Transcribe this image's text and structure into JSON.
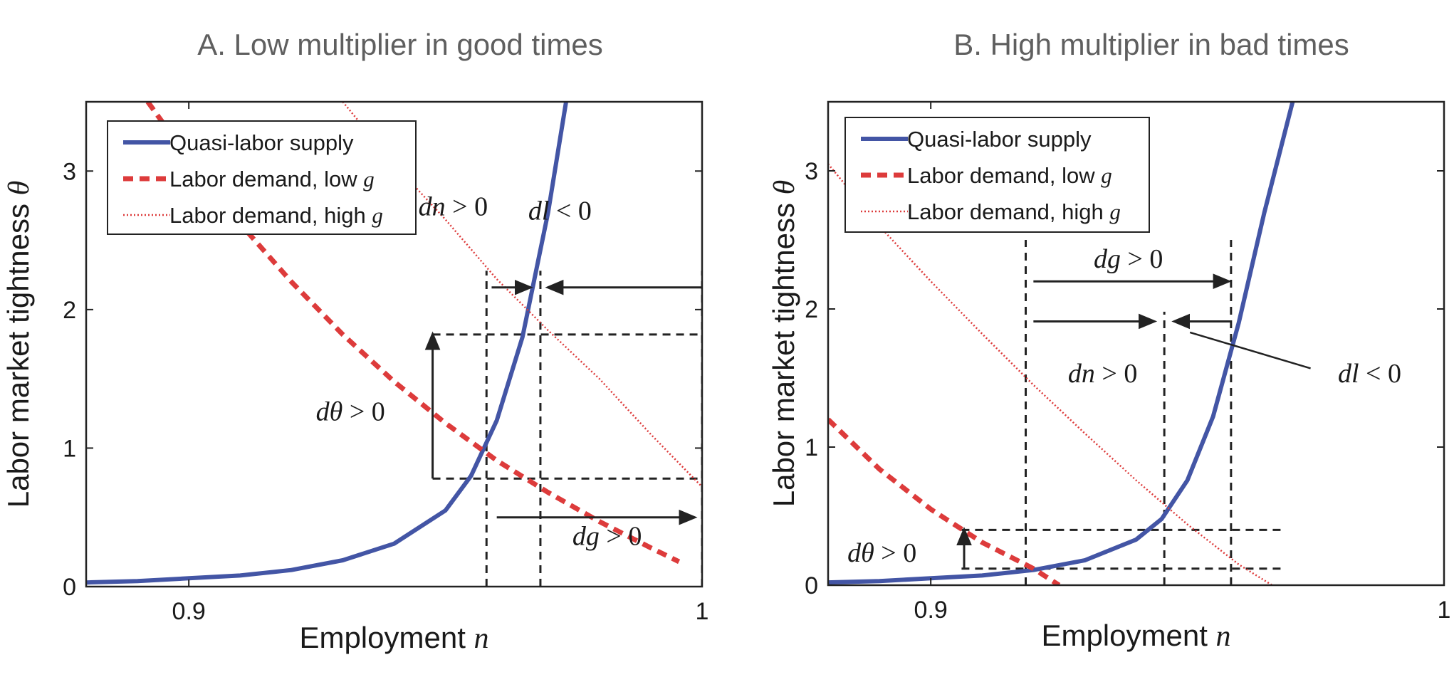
{
  "colors": {
    "supply": "#4355a5",
    "demand": "#dd3b3b",
    "guide": "#222222",
    "title": "#5f5f5f"
  },
  "chart_data": [
    {
      "type": "line",
      "title": "A. Low multiplier in good times",
      "xlabel_text": "Employment ",
      "xlabel_var": "n",
      "ylabel_text": "Labor market tightness ",
      "ylabel_var": "θ",
      "xlim": [
        0.88,
        1.0
      ],
      "ylim": [
        0,
        3.5
      ],
      "xticks": [
        {
          "value": 0.9,
          "label": "0.9"
        },
        {
          "value": 1.0,
          "label": "1"
        }
      ],
      "yticks": [
        {
          "value": 0,
          "label": "0"
        },
        {
          "value": 1,
          "label": "1"
        },
        {
          "value": 2,
          "label": "2"
        },
        {
          "value": 3,
          "label": "3"
        }
      ],
      "legend": {
        "placement": "top-left",
        "entries": [
          {
            "text": "Quasi-labor supply",
            "var": "",
            "style": "solid"
          },
          {
            "text": "Labor demand, low ",
            "var": "g",
            "style": "dashed"
          },
          {
            "text": "Labor demand, high ",
            "var": "g",
            "style": "dotted"
          }
        ]
      },
      "series": [
        {
          "name": "Quasi-labor supply",
          "style": "solid",
          "x": [
            0.88,
            0.89,
            0.9,
            0.91,
            0.92,
            0.93,
            0.94,
            0.95,
            0.955,
            0.96,
            0.965,
            0.97,
            0.9735
          ],
          "y": [
            0.03,
            0.04,
            0.06,
            0.08,
            0.12,
            0.19,
            0.31,
            0.55,
            0.8,
            1.2,
            1.8,
            2.7,
            3.5
          ]
        },
        {
          "name": "Labor demand, low g",
          "style": "dashed",
          "x": [
            0.892,
            0.9,
            0.91,
            0.92,
            0.93,
            0.94,
            0.95,
            0.96,
            0.97,
            0.98,
            0.99,
            0.9955
          ],
          "y": [
            3.5,
            3.09,
            2.62,
            2.2,
            1.82,
            1.48,
            1.18,
            0.91,
            0.68,
            0.47,
            0.28,
            0.18
          ]
        },
        {
          "name": "Labor demand, high g",
          "style": "dotted",
          "x": [
            0.93,
            0.94,
            0.95,
            0.96,
            0.97,
            0.98,
            0.99,
            1.0
          ],
          "y": [
            3.5,
            3.05,
            2.65,
            2.22,
            1.85,
            1.5,
            1.1,
            0.72
          ]
        }
      ],
      "guides": {
        "vertical": [
          {
            "x": 0.958,
            "y0": 0,
            "y1": 2.28
          },
          {
            "x": 0.9685,
            "y0": 0,
            "y1": 2.28
          },
          {
            "x": 1.0,
            "y0": 0,
            "y1": 2.28
          }
        ],
        "horizontal": [
          {
            "y": 1.82,
            "x0": 0.9475,
            "x1": 1.0
          },
          {
            "y": 0.78,
            "x0": 0.9475,
            "x1": 1.0
          }
        ]
      },
      "arrows": [
        {
          "x0": 0.9475,
          "y0": 0.78,
          "x1": 0.9475,
          "y1": 1.82
        },
        {
          "x0": 0.959,
          "y0": 2.16,
          "x1": 0.9665,
          "y1": 2.16
        },
        {
          "x0": 1.0,
          "y0": 2.16,
          "x1": 0.97,
          "y1": 2.16
        },
        {
          "x0": 0.96,
          "y0": 0.5,
          "x1": 0.9985,
          "y1": 0.5
        }
      ],
      "annotations": [
        {
          "var": "dθ",
          "rel": " > 0",
          "x": 0.9315,
          "y": 1.2
        },
        {
          "var": "dn",
          "rel": " > 0",
          "x": 0.9515,
          "y": 2.68
        },
        {
          "var": "dl",
          "rel": " < 0",
          "x": 0.9723,
          "y": 2.65
        },
        {
          "var": "dg",
          "rel": " > 0",
          "x": 0.9815,
          "y": 0.3
        }
      ]
    },
    {
      "type": "line",
      "title": "B. High multiplier in bad times",
      "xlabel_text": "Employment ",
      "xlabel_var": "n",
      "ylabel_text": "Labor market tightness ",
      "ylabel_var": "θ",
      "xlim": [
        0.88,
        1.0
      ],
      "ylim": [
        0,
        3.5
      ],
      "xticks": [
        {
          "value": 0.9,
          "label": "0.9"
        },
        {
          "value": 1.0,
          "label": "1"
        }
      ],
      "yticks": [
        {
          "value": 0,
          "label": "0"
        },
        {
          "value": 1,
          "label": "1"
        },
        {
          "value": 2,
          "label": "2"
        },
        {
          "value": 3,
          "label": "3"
        }
      ],
      "legend": {
        "placement": "top-left",
        "entries": [
          {
            "text": "Quasi-labor supply",
            "var": "",
            "style": "solid"
          },
          {
            "text": "Labor demand, low ",
            "var": "g",
            "style": "dashed"
          },
          {
            "text": "Labor demand, high ",
            "var": "g",
            "style": "dotted"
          }
        ]
      },
      "series": [
        {
          "name": "Quasi-labor supply",
          "style": "solid",
          "x": [
            0.88,
            0.89,
            0.9,
            0.91,
            0.92,
            0.93,
            0.94,
            0.945,
            0.95,
            0.955,
            0.96,
            0.965,
            0.9705
          ],
          "y": [
            0.02,
            0.03,
            0.05,
            0.07,
            0.11,
            0.18,
            0.33,
            0.48,
            0.76,
            1.22,
            1.9,
            2.7,
            3.5
          ]
        },
        {
          "name": "Labor demand, low g",
          "style": "dashed",
          "x": [
            0.88,
            0.89,
            0.9,
            0.91,
            0.92,
            0.925
          ],
          "y": [
            1.2,
            0.84,
            0.55,
            0.31,
            0.12,
            0.0
          ]
        },
        {
          "name": "Labor demand, high g",
          "style": "dotted",
          "x": [
            0.88,
            0.89,
            0.9,
            0.91,
            0.92,
            0.93,
            0.94,
            0.95,
            0.96,
            0.9665
          ],
          "y": [
            3.05,
            2.6,
            2.2,
            1.82,
            1.45,
            1.1,
            0.76,
            0.44,
            0.15,
            0.0
          ]
        }
      ],
      "guides": {
        "vertical": [
          {
            "x": 0.9185,
            "y0": 0,
            "y1": 2.5
          },
          {
            "x": 0.9455,
            "y0": 0,
            "y1": 1.98
          },
          {
            "x": 0.9585,
            "y0": 0,
            "y1": 2.5
          }
        ],
        "horizontal": [
          {
            "y": 0.4,
            "x0": 0.906,
            "x1": 0.969
          },
          {
            "y": 0.12,
            "x0": 0.906,
            "x1": 0.969
          }
        ]
      },
      "arrows": [
        {
          "x0": 0.9065,
          "y0": 0.12,
          "x1": 0.9065,
          "y1": 0.4
        },
        {
          "x0": 0.92,
          "y0": 2.2,
          "x1": 0.958,
          "y1": 2.2
        },
        {
          "x0": 0.92,
          "y0": 1.91,
          "x1": 0.9435,
          "y1": 1.91
        },
        {
          "x0": 0.9585,
          "y0": 1.91,
          "x1": 0.9475,
          "y1": 1.91
        }
      ],
      "pointer_line": {
        "x0": 0.974,
        "y0": 1.57,
        "x1": 0.9505,
        "y1": 1.83
      },
      "annotations": [
        {
          "var": "dg",
          "rel": " > 0",
          "x": 0.9385,
          "y": 2.3
        },
        {
          "var": "dn",
          "rel": " > 0",
          "x": 0.9335,
          "y": 1.47
        },
        {
          "var": "dl",
          "rel": " < 0",
          "x": 0.9855,
          "y": 1.47
        },
        {
          "var": "dθ",
          "rel": " > 0",
          "x": 0.8905,
          "y": 0.17
        }
      ]
    }
  ]
}
